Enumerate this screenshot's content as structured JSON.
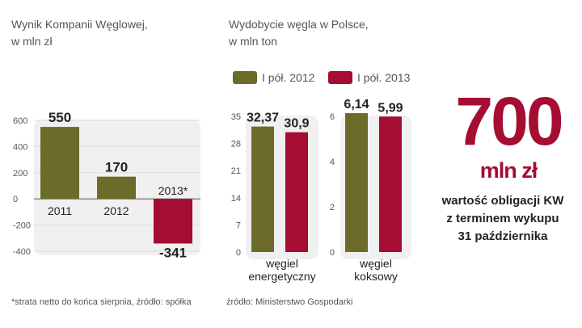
{
  "colors": {
    "series_2012": "#6b6b2a",
    "series_2013": "#a50d33",
    "panel_bg": "#f0f0f0",
    "accent": "#a50d33"
  },
  "chart_data": [
    {
      "type": "bar",
      "title_lines": [
        "Wynik Kompanii Węglowej,",
        "w mln zł"
      ],
      "categories": [
        "2011",
        "2012",
        "2013*"
      ],
      "values": [
        550,
        170,
        -341
      ],
      "value_labels": [
        "550",
        "170",
        "-341"
      ],
      "bar_colors": [
        "#6b6b2a",
        "#6b6b2a",
        "#a50d33"
      ],
      "yticks": [
        "600",
        "400",
        "200",
        "0",
        "-200",
        "-400"
      ],
      "ylim": [
        -400,
        600
      ],
      "footnote": "*strata netto do końca sierpnia, źródło: spółka"
    },
    {
      "type": "bar",
      "title_lines": [
        "Wydobycie węgla w Polsce,",
        "w mln ton"
      ],
      "legend": [
        "I pół. 2012",
        "I pół. 2013"
      ],
      "groups": [
        {
          "label_lines": [
            "węgiel",
            "energetyczny"
          ],
          "yticks": [
            "35",
            "28",
            "21",
            "14",
            "7",
            "0"
          ],
          "ylim": [
            0,
            35
          ],
          "values": [
            32.37,
            30.9
          ],
          "value_labels": [
            "32,37",
            "30,9"
          ]
        },
        {
          "label_lines": [
            "węgiel",
            "koksowy"
          ],
          "yticks": [
            "6",
            "4",
            "2",
            "0"
          ],
          "ylim": [
            0,
            6
          ],
          "values": [
            6.14,
            5.99
          ],
          "value_labels": [
            "6,14",
            "5,99"
          ]
        }
      ],
      "footnote": "źródło: Ministerstwo Gospodarki"
    }
  ],
  "highlight": {
    "number": "700",
    "unit": "mln zł",
    "description_lines": [
      "wartość obligacji KW",
      "z terminem wykupu",
      "31 października"
    ]
  }
}
